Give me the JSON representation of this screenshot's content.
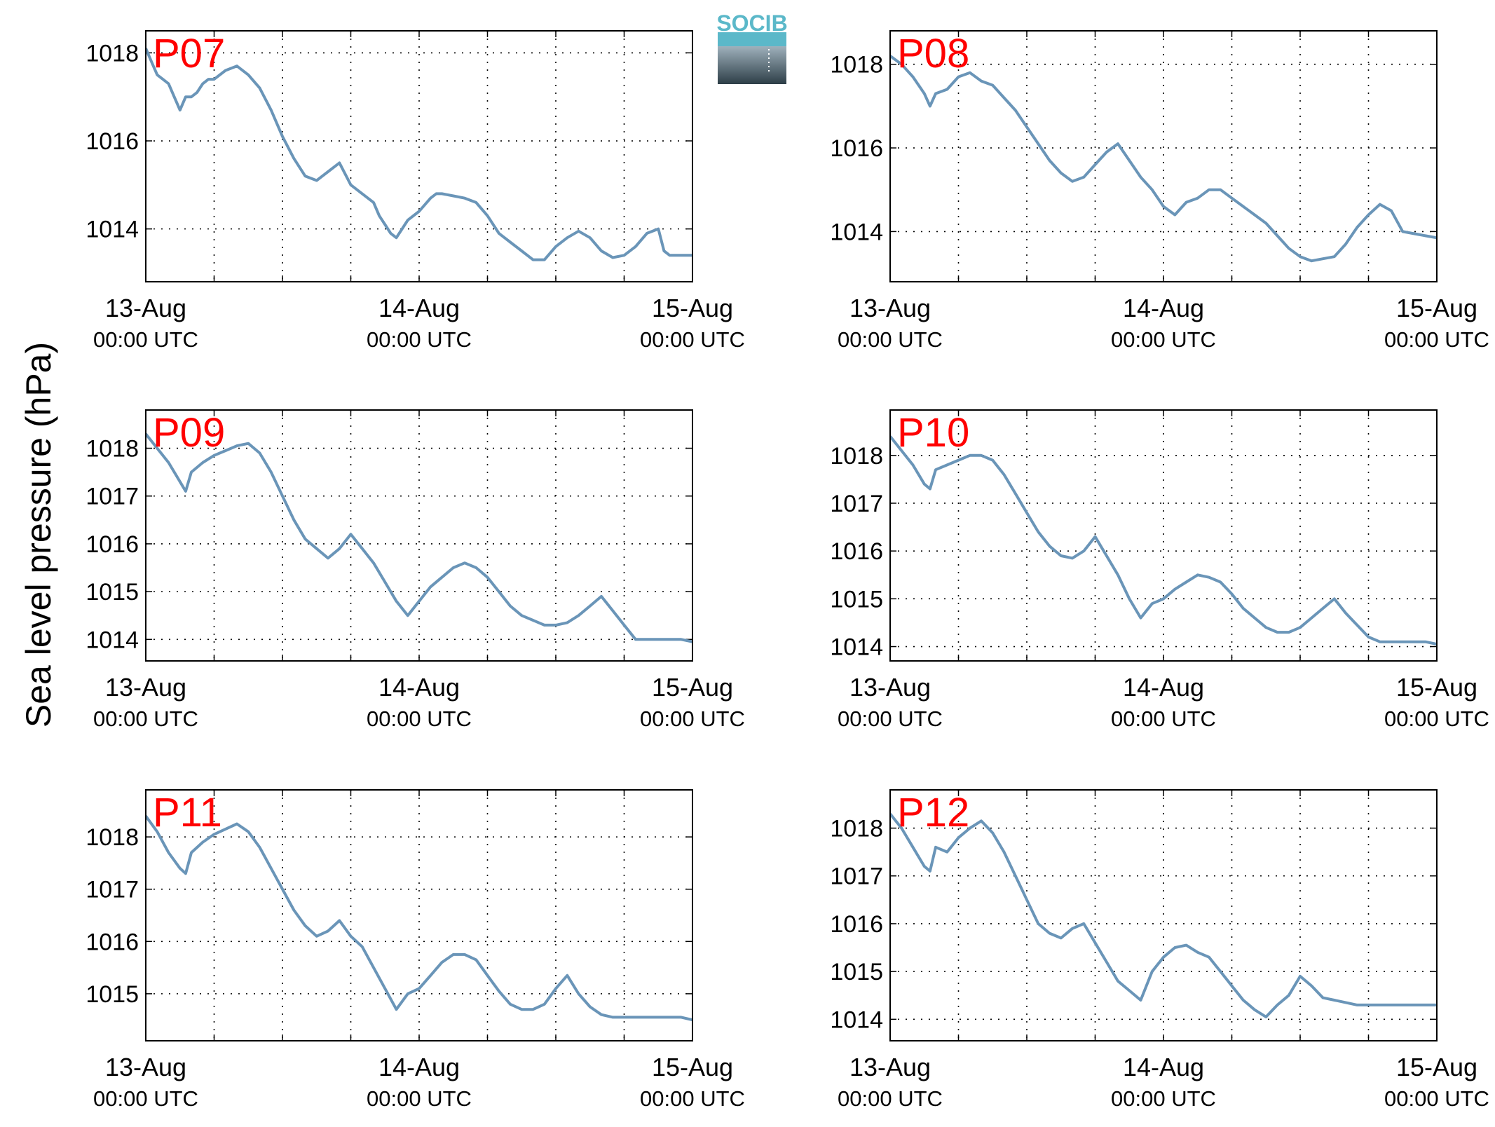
{
  "figure": {
    "ylabel": "Sea level pressure (hPa)",
    "logo_text": "SOCIB",
    "colors": {
      "line": "#6a95b8",
      "panel_label": "#ff0000",
      "grid": "#000000",
      "logo_top": "#5bb8c9",
      "logo_bottom": "#2d3e47"
    }
  },
  "chart_data": [
    {
      "type": "line",
      "panel_label": "P07",
      "x_ticks": [
        {
          "line1": "13-Aug",
          "line2": "00:00 UTC"
        },
        {
          "line1": "14-Aug",
          "line2": "00:00 UTC"
        },
        {
          "line1": "15-Aug",
          "line2": "00:00 UTC"
        }
      ],
      "y_ticks": [
        1014,
        1016,
        1018
      ],
      "xlim_hours": [
        0,
        48
      ],
      "ylim": [
        1012.8,
        1018.5
      ],
      "grid": true,
      "x": [
        0,
        0.5,
        1,
        1.5,
        2,
        2.5,
        3,
        3.5,
        4,
        4.5,
        5,
        5.5,
        6,
        7,
        8,
        9,
        10,
        11,
        12,
        13,
        14,
        15,
        16,
        17,
        18,
        19,
        20,
        20.5,
        21,
        21.5,
        22,
        23,
        24,
        25,
        25.5,
        26,
        27,
        28,
        29,
        30,
        31,
        32,
        33,
        34,
        35,
        36,
        37,
        38,
        39,
        40,
        41,
        42,
        43,
        44,
        45,
        45.5,
        46,
        47,
        48
      ],
      "y": [
        1018.1,
        1017.8,
        1017.5,
        1017.4,
        1017.3,
        1017.0,
        1016.7,
        1017.0,
        1017.0,
        1017.1,
        1017.3,
        1017.4,
        1017.4,
        1017.6,
        1017.7,
        1017.5,
        1017.2,
        1016.7,
        1016.1,
        1015.6,
        1015.2,
        1015.1,
        1015.3,
        1015.5,
        1015.0,
        1014.8,
        1014.6,
        1014.3,
        1014.1,
        1013.9,
        1013.8,
        1014.2,
        1014.4,
        1014.7,
        1014.8,
        1014.8,
        1014.75,
        1014.7,
        1014.6,
        1014.3,
        1013.9,
        1013.7,
        1013.5,
        1013.3,
        1013.3,
        1013.6,
        1013.8,
        1013.95,
        1013.8,
        1013.5,
        1013.35,
        1013.4,
        1013.6,
        1013.9,
        1014.0,
        1013.5,
        1013.4,
        1013.4,
        1013.4
      ]
    },
    {
      "type": "line",
      "panel_label": "P08",
      "x_ticks": [
        {
          "line1": "13-Aug",
          "line2": "00:00 UTC"
        },
        {
          "line1": "14-Aug",
          "line2": "00:00 UTC"
        },
        {
          "line1": "15-Aug",
          "line2": "00:00 UTC"
        }
      ],
      "y_ticks": [
        1014,
        1016,
        1018
      ],
      "xlim_hours": [
        0,
        48
      ],
      "ylim": [
        1012.8,
        1018.8
      ],
      "grid": true,
      "x": [
        0,
        1,
        2,
        3,
        3.5,
        4,
        5,
        6,
        7,
        8,
        9,
        10,
        11,
        12,
        13,
        14,
        15,
        16,
        17,
        18,
        19,
        20,
        21,
        22,
        23,
        24,
        25,
        26,
        27,
        28,
        29,
        30,
        31,
        32,
        33,
        34,
        35,
        36,
        37,
        38,
        39,
        40,
        41,
        42,
        43,
        44,
        45,
        46,
        47,
        48
      ],
      "y": [
        1018.2,
        1018.0,
        1017.7,
        1017.3,
        1017.0,
        1017.3,
        1017.4,
        1017.7,
        1017.8,
        1017.6,
        1017.5,
        1017.2,
        1016.9,
        1016.5,
        1016.1,
        1015.7,
        1015.4,
        1015.2,
        1015.3,
        1015.6,
        1015.9,
        1016.1,
        1015.7,
        1015.3,
        1015.0,
        1014.6,
        1014.4,
        1014.7,
        1014.8,
        1015.0,
        1015.0,
        1014.8,
        1014.6,
        1014.4,
        1014.2,
        1013.9,
        1013.6,
        1013.4,
        1013.3,
        1013.35,
        1013.4,
        1013.7,
        1014.1,
        1014.4,
        1014.65,
        1014.5,
        1014.0,
        1013.95,
        1013.9,
        1013.85
      ]
    },
    {
      "type": "line",
      "panel_label": "P09",
      "x_ticks": [
        {
          "line1": "13-Aug",
          "line2": "00:00 UTC"
        },
        {
          "line1": "14-Aug",
          "line2": "00:00 UTC"
        },
        {
          "line1": "15-Aug",
          "line2": "00:00 UTC"
        }
      ],
      "y_ticks": [
        1014,
        1015,
        1016,
        1017,
        1018
      ],
      "xlim_hours": [
        0,
        48
      ],
      "ylim": [
        1013.55,
        1018.8
      ],
      "grid": true,
      "x": [
        0,
        1,
        2,
        3,
        3.5,
        4,
        5,
        6,
        7,
        8,
        9,
        10,
        11,
        12,
        13,
        14,
        15,
        16,
        17,
        18,
        19,
        20,
        21,
        22,
        23,
        24,
        25,
        26,
        27,
        28,
        29,
        30,
        31,
        32,
        33,
        34,
        35,
        36,
        37,
        38,
        39,
        40,
        41,
        42,
        43,
        44,
        45,
        46,
        47,
        48
      ],
      "y": [
        1018.3,
        1018.0,
        1017.7,
        1017.3,
        1017.1,
        1017.5,
        1017.7,
        1017.85,
        1017.95,
        1018.05,
        1018.1,
        1017.9,
        1017.5,
        1017.0,
        1016.5,
        1016.1,
        1015.9,
        1015.7,
        1015.9,
        1016.2,
        1015.9,
        1015.6,
        1015.2,
        1014.8,
        1014.5,
        1014.8,
        1015.1,
        1015.3,
        1015.5,
        1015.6,
        1015.5,
        1015.3,
        1015.0,
        1014.7,
        1014.5,
        1014.4,
        1014.3,
        1014.3,
        1014.35,
        1014.5,
        1014.7,
        1014.9,
        1014.6,
        1014.3,
        1014.0,
        1014.0,
        1014.0,
        1014.0,
        1014.0,
        1013.95
      ]
    },
    {
      "type": "line",
      "panel_label": "P10",
      "x_ticks": [
        {
          "line1": "13-Aug",
          "line2": "00:00 UTC"
        },
        {
          "line1": "14-Aug",
          "line2": "00:00 UTC"
        },
        {
          "line1": "15-Aug",
          "line2": "00:00 UTC"
        }
      ],
      "y_ticks": [
        1014,
        1015,
        1016,
        1017,
        1018
      ],
      "xlim_hours": [
        0,
        48
      ],
      "ylim": [
        1013.7,
        1018.95
      ],
      "grid": true,
      "x": [
        0,
        1,
        2,
        3,
        3.5,
        4,
        5,
        6,
        7,
        8,
        9,
        10,
        11,
        12,
        13,
        14,
        15,
        16,
        17,
        18,
        19,
        20,
        21,
        22,
        23,
        24,
        25,
        26,
        27,
        28,
        29,
        30,
        31,
        32,
        33,
        34,
        35,
        36,
        37,
        38,
        39,
        40,
        41,
        42,
        43,
        44,
        45,
        46,
        47,
        48
      ],
      "y": [
        1018.4,
        1018.1,
        1017.8,
        1017.4,
        1017.3,
        1017.7,
        1017.8,
        1017.9,
        1018.0,
        1018.0,
        1017.9,
        1017.6,
        1017.2,
        1016.8,
        1016.4,
        1016.1,
        1015.9,
        1015.85,
        1016.0,
        1016.3,
        1015.9,
        1015.5,
        1015.0,
        1014.6,
        1014.9,
        1015.0,
        1015.2,
        1015.35,
        1015.5,
        1015.45,
        1015.35,
        1015.1,
        1014.8,
        1014.6,
        1014.4,
        1014.3,
        1014.3,
        1014.4,
        1014.6,
        1014.8,
        1015.0,
        1014.7,
        1014.45,
        1014.2,
        1014.1,
        1014.1,
        1014.1,
        1014.1,
        1014.1,
        1014.05
      ]
    },
    {
      "type": "line",
      "panel_label": "P11",
      "x_ticks": [
        {
          "line1": "13-Aug",
          "line2": "00:00 UTC"
        },
        {
          "line1": "14-Aug",
          "line2": "00:00 UTC"
        },
        {
          "line1": "15-Aug",
          "line2": "00:00 UTC"
        }
      ],
      "y_ticks": [
        1015,
        1016,
        1017,
        1018
      ],
      "xlim_hours": [
        0,
        48
      ],
      "ylim": [
        1014.1,
        1018.9
      ],
      "grid": true,
      "x": [
        0,
        1,
        2,
        3,
        3.5,
        4,
        5,
        6,
        7,
        8,
        9,
        10,
        11,
        12,
        13,
        14,
        15,
        16,
        17,
        18,
        19,
        20,
        21,
        22,
        23,
        24,
        25,
        26,
        27,
        28,
        29,
        30,
        31,
        32,
        33,
        34,
        35,
        36,
        37,
        38,
        39,
        40,
        41,
        42,
        43,
        44,
        45,
        46,
        47,
        48
      ],
      "y": [
        1018.4,
        1018.1,
        1017.7,
        1017.4,
        1017.3,
        1017.7,
        1017.9,
        1018.05,
        1018.15,
        1018.25,
        1018.1,
        1017.8,
        1017.4,
        1017.0,
        1016.6,
        1016.3,
        1016.1,
        1016.2,
        1016.4,
        1016.1,
        1015.9,
        1015.5,
        1015.1,
        1014.7,
        1015.0,
        1015.1,
        1015.35,
        1015.6,
        1015.75,
        1015.75,
        1015.65,
        1015.35,
        1015.05,
        1014.8,
        1014.7,
        1014.7,
        1014.8,
        1015.1,
        1015.35,
        1015.0,
        1014.75,
        1014.6,
        1014.55,
        1014.55,
        1014.55,
        1014.55,
        1014.55,
        1014.55,
        1014.55,
        1014.5
      ]
    },
    {
      "type": "line",
      "panel_label": "P12",
      "x_ticks": [
        {
          "line1": "13-Aug",
          "line2": "00:00 UTC"
        },
        {
          "line1": "14-Aug",
          "line2": "00:00 UTC"
        },
        {
          "line1": "15-Aug",
          "line2": "00:00 UTC"
        }
      ],
      "y_ticks": [
        1014,
        1015,
        1016,
        1017,
        1018
      ],
      "xlim_hours": [
        0,
        48
      ],
      "ylim": [
        1013.55,
        1018.8
      ],
      "grid": true,
      "x": [
        0,
        1,
        2,
        3,
        3.5,
        4,
        5,
        6,
        7,
        8,
        9,
        10,
        11,
        12,
        13,
        14,
        15,
        16,
        17,
        18,
        19,
        20,
        21,
        22,
        23,
        24,
        25,
        26,
        27,
        28,
        29,
        30,
        31,
        32,
        33,
        34,
        35,
        36,
        37,
        38,
        39,
        40,
        41,
        42,
        43,
        44,
        45,
        46,
        47,
        48
      ],
      "y": [
        1018.3,
        1018.0,
        1017.6,
        1017.2,
        1017.1,
        1017.6,
        1017.5,
        1017.8,
        1018.0,
        1018.15,
        1017.9,
        1017.5,
        1017.0,
        1016.5,
        1016.0,
        1015.8,
        1015.7,
        1015.9,
        1016.0,
        1015.6,
        1015.2,
        1014.8,
        1014.6,
        1014.4,
        1015.0,
        1015.3,
        1015.5,
        1015.55,
        1015.4,
        1015.3,
        1015.0,
        1014.7,
        1014.4,
        1014.2,
        1014.05,
        1014.3,
        1014.5,
        1014.9,
        1014.7,
        1014.45,
        1014.4,
        1014.35,
        1014.3,
        1014.3,
        1014.3,
        1014.3,
        1014.3,
        1014.3,
        1014.3,
        1014.3
      ]
    }
  ]
}
